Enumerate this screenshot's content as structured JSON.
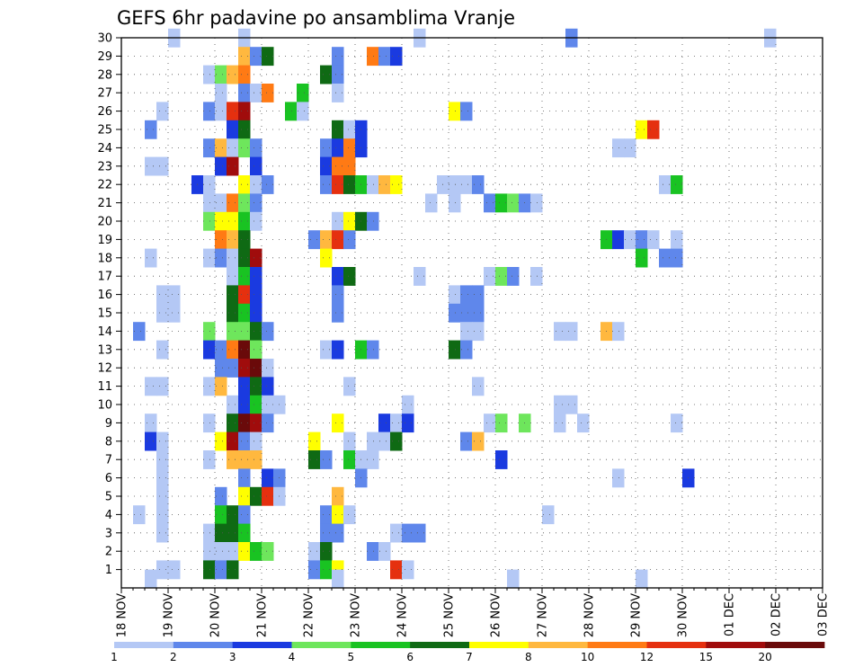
{
  "chart_data": {
    "type": "heatmap",
    "title": "GEFS 6hr padavine po ansamblima Vranje",
    "x_ticks": [
      "18 NOV",
      "19 NOV",
      "20 NOV",
      "21 NOV",
      "22 NOV",
      "23 NOV",
      "24 NOV",
      "25 NOV",
      "26 NOV",
      "27 NOV",
      "28 NOV",
      "29 NOV",
      "30 NOV",
      "01 DEC",
      "02 DEC",
      "03 DEC"
    ],
    "y_ticks": [
      "1",
      "2",
      "3",
      "4",
      "5",
      "6",
      "7",
      "8",
      "9",
      "10",
      "11",
      "12",
      "13",
      "14",
      "15",
      "16",
      "17",
      "18",
      "19",
      "20",
      "21",
      "22",
      "23",
      "24",
      "25",
      "26",
      "27",
      "28",
      "29",
      "30"
    ],
    "ylim": [
      0,
      30
    ],
    "x_range_days": [
      0,
      15
    ],
    "grid": true,
    "levels": [
      1,
      2,
      3,
      4,
      5,
      6,
      7,
      8,
      10,
      12,
      15,
      20
    ],
    "colorbar_labels": [
      "1",
      "2",
      "3",
      "4",
      "5",
      "6",
      "7",
      "8",
      "10",
      "12",
      "15",
      "20"
    ],
    "colors": [
      "#b4c8f5",
      "#5f87eb",
      "#1a3ae0",
      "#6ee65c",
      "#19c322",
      "#0f6a14",
      "#ffff00",
      "#ffb83f",
      "#ff7a14",
      "#e5300f",
      "#a00c0c",
      "#6a0a0a"
    ],
    "ensemble_cells": [
      [
        1,
        1,
        0
      ],
      [
        1,
        2,
        0
      ],
      [
        1,
        4,
        0
      ],
      [
        1,
        4,
        4
      ],
      [
        1,
        5,
        4
      ],
      [
        1,
        7,
        4
      ],
      [
        1,
        7,
        5
      ],
      [
        1,
        11,
        0
      ],
      [
        1,
        11,
        2
      ],
      [
        1,
        12,
        0
      ],
      [
        1,
        13,
        0
      ],
      [
        1,
        14,
        0
      ],
      [
        1,
        14,
        1
      ],
      [
        1,
        15,
        3
      ],
      [
        1,
        18,
        0
      ],
      [
        1,
        21,
        4
      ],
      [
        1,
        21,
        5
      ],
      [
        1,
        24,
        0
      ],
      [
        1,
        24,
        1
      ],
      [
        1,
        24,
        2
      ],
      [
        1,
        27,
        0
      ],
      [
        1,
        28,
        1
      ],
      [
        1,
        29,
        0
      ],
      [
        1,
        32,
        0
      ],
      [
        2,
        1,
        0
      ],
      [
        2,
        2,
        0
      ],
      [
        2,
        3,
        0
      ],
      [
        2,
        4,
        0
      ],
      [
        2,
        5,
        1
      ],
      [
        2,
        5,
        3
      ],
      [
        2,
        6,
        3
      ],
      [
        2,
        7,
        0
      ],
      [
        2,
        7,
        1
      ],
      [
        2,
        8,
        0
      ],
      [
        2,
        8,
        2
      ],
      [
        2,
        9,
        0
      ],
      [
        2,
        9,
        0
      ],
      [
        2,
        10,
        1
      ],
      [
        2,
        10,
        3
      ],
      [
        2,
        12,
        0
      ],
      [
        2,
        13,
        1
      ],
      [
        2,
        14,
        1
      ],
      [
        2,
        15,
        0
      ],
      [
        2,
        15,
        3
      ],
      [
        2,
        16,
        2
      ],
      [
        2,
        16,
        4
      ],
      [
        2,
        19,
        0
      ],
      [
        2,
        20,
        0
      ],
      [
        2,
        21,
        2
      ],
      [
        2,
        22,
        0
      ],
      [
        2,
        24,
        0
      ],
      [
        2,
        25,
        0
      ],
      [
        2,
        26,
        0
      ],
      [
        2,
        30,
        0
      ],
      [
        2,
        33,
        0
      ],
      [
        3,
        3,
        0
      ],
      [
        3,
        3,
        1
      ],
      [
        3,
        3,
        2
      ],
      [
        3,
        3,
        3
      ],
      [
        3,
        4,
        3
      ],
      [
        3,
        4,
        4
      ],
      [
        3,
        4,
        5
      ],
      [
        3,
        5,
        0
      ],
      [
        3,
        5,
        1
      ],
      [
        3,
        5,
        2
      ],
      [
        3,
        5,
        3
      ],
      [
        3,
        6,
        2
      ],
      [
        3,
        6,
        3
      ],
      [
        3,
        6,
        4
      ],
      [
        3,
        7,
        0
      ],
      [
        3,
        7,
        1
      ],
      [
        3,
        7,
        2
      ],
      [
        3,
        7,
        4
      ],
      [
        3,
        8,
        3
      ],
      [
        3,
        8,
        7
      ],
      [
        3,
        9,
        0
      ],
      [
        3,
        9,
        5
      ],
      [
        3,
        9,
        10
      ],
      [
        3,
        9,
        11
      ],
      [
        3,
        10,
        0
      ],
      [
        3,
        10,
        3
      ],
      [
        3,
        10,
        5
      ],
      [
        3,
        10,
        11
      ],
      [
        3,
        11,
        0
      ],
      [
        3,
        12,
        0
      ],
      [
        3,
        12,
        1
      ],
      [
        3,
        12,
        2
      ],
      [
        3,
        13,
        0
      ],
      [
        3,
        14,
        0
      ],
      [
        3,
        14,
        1
      ],
      [
        3,
        15,
        1
      ],
      [
        3,
        16,
        0
      ],
      [
        3,
        17,
        0
      ],
      [
        3,
        18,
        0
      ],
      [
        3,
        19,
        0
      ],
      [
        3,
        20,
        0
      ],
      [
        3,
        21,
        0
      ],
      [
        3,
        21,
        1
      ],
      [
        3,
        21,
        2
      ],
      [
        3,
        22,
        0
      ],
      [
        3,
        22,
        1
      ],
      [
        3,
        23,
        0
      ],
      [
        3,
        23,
        2
      ],
      [
        3,
        24,
        0
      ],
      [
        3,
        24,
        1
      ],
      [
        3,
        25,
        3
      ],
      [
        3,
        26,
        0
      ],
      [
        3,
        27,
        0
      ],
      [
        3,
        27,
        1
      ],
      [
        3,
        28,
        0
      ],
      [
        3,
        28,
        1
      ],
      [
        3,
        29,
        0
      ],
      [
        3,
        29,
        2
      ],
      [
        3,
        30,
        0
      ],
      [
        3,
        31,
        2
      ],
      [
        3,
        31,
        5
      ],
      [
        3,
        32,
        2
      ],
      [
        3,
        33,
        0
      ],
      [
        3,
        34,
        3
      ],
      [
        3,
        35,
        4
      ],
      [
        3,
        36,
        4
      ],
      [
        3,
        37,
        3
      ],
      [
        3,
        38,
        0
      ],
      [
        3,
        39,
        2
      ],
      [
        3,
        40,
        0
      ]
    ],
    "cells": []
  }
}
